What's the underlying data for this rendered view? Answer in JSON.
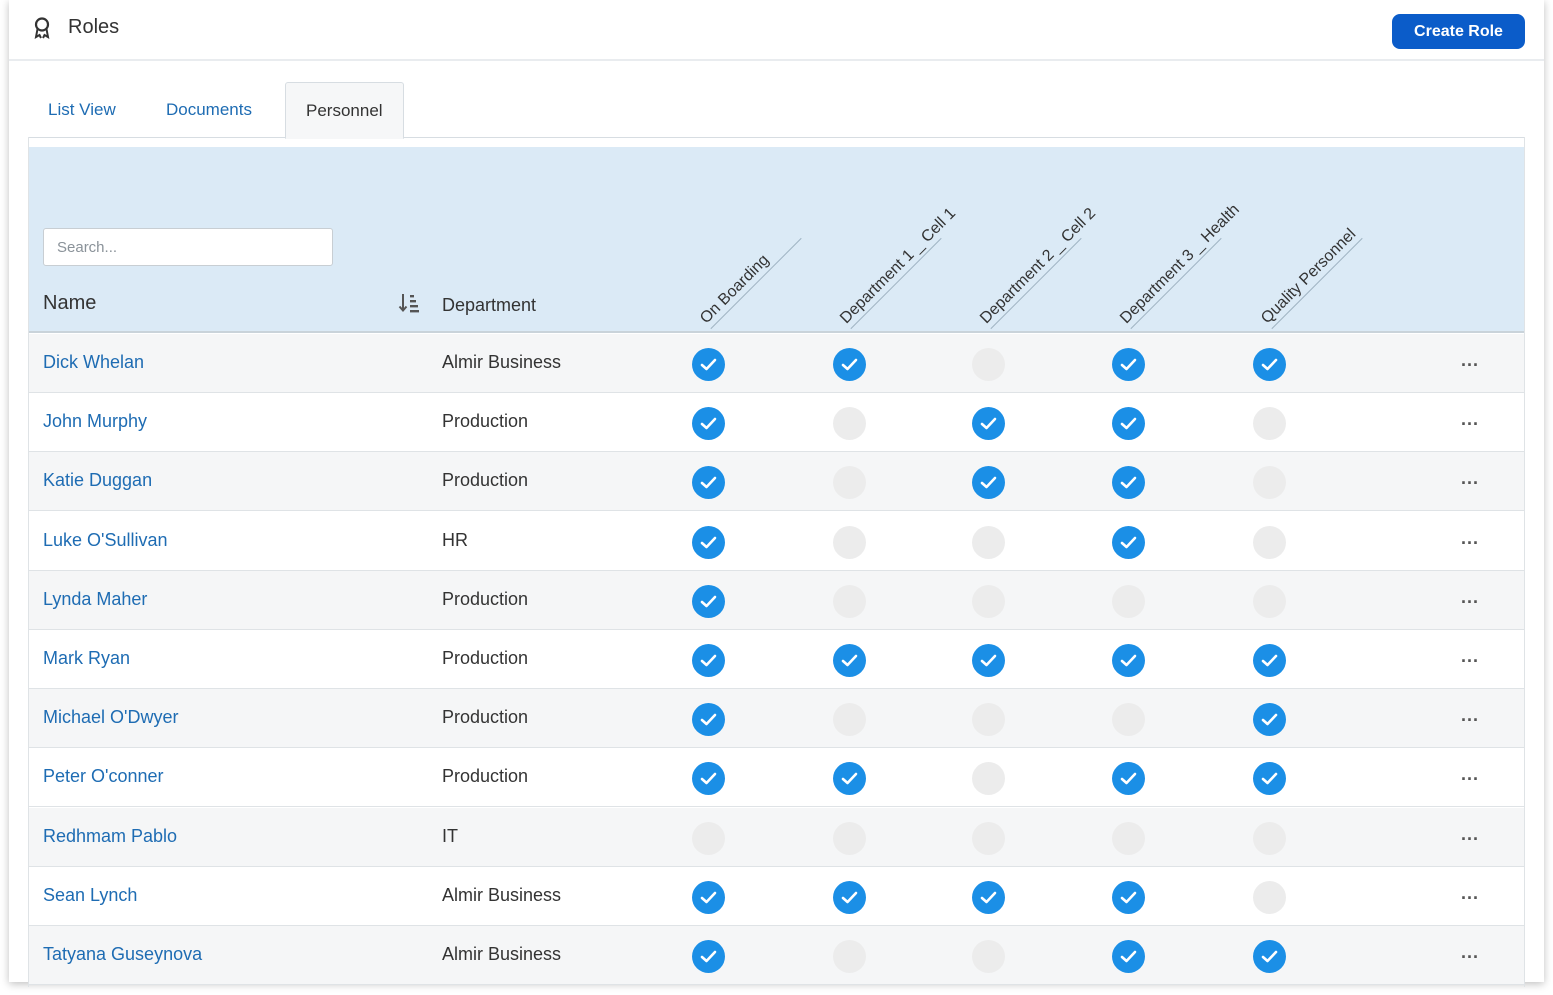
{
  "header": {
    "title": "Roles",
    "icon": "award-ribbon-icon",
    "create_button": "Create Role",
    "accent_color": "#0b5cc9"
  },
  "tabs": [
    {
      "label": "List View",
      "active": false
    },
    {
      "label": "Documents",
      "active": false
    },
    {
      "label": "Personnel",
      "active": true
    }
  ],
  "table": {
    "search_placeholder": "Search...",
    "name_header": "Name",
    "department_header": "Department",
    "role_columns": [
      "On Boarding",
      "Department 1 _ Cell 1",
      "Department 2 _ Cell 2",
      "Department 3 _ Health",
      "Quality Personnel"
    ],
    "check_color": "#1b8fe6",
    "rows": [
      {
        "name": "Dick Whelan",
        "department": "Almir Business",
        "roles": [
          true,
          true,
          false,
          true,
          true
        ],
        "more": "..."
      },
      {
        "name": "John Murphy",
        "department": "Production",
        "roles": [
          true,
          false,
          true,
          true,
          false
        ],
        "more": "..."
      },
      {
        "name": "Katie Duggan",
        "department": "Production",
        "roles": [
          true,
          false,
          true,
          true,
          false
        ],
        "more": "..."
      },
      {
        "name": "Luke O'Sullivan",
        "department": "HR",
        "roles": [
          true,
          false,
          false,
          true,
          false
        ],
        "more": "..."
      },
      {
        "name": "Lynda Maher",
        "department": "Production",
        "roles": [
          true,
          false,
          false,
          false,
          false
        ],
        "more": "..."
      },
      {
        "name": "Mark Ryan",
        "department": "Production",
        "roles": [
          true,
          true,
          true,
          true,
          true
        ],
        "more": "..."
      },
      {
        "name": "Michael O'Dwyer",
        "department": "Production",
        "roles": [
          true,
          false,
          false,
          false,
          true
        ],
        "more": "..."
      },
      {
        "name": "Peter O'conner",
        "department": "Production",
        "roles": [
          true,
          true,
          false,
          true,
          true
        ],
        "more": "..."
      },
      {
        "name": "Redhmam Pablo",
        "department": "IT",
        "roles": [
          false,
          false,
          false,
          false,
          false
        ],
        "more": "..."
      },
      {
        "name": "Sean Lynch",
        "department": "Almir Business",
        "roles": [
          true,
          true,
          true,
          true,
          false
        ],
        "more": "..."
      },
      {
        "name": "Tatyana Guseynova",
        "department": "Almir Business",
        "roles": [
          true,
          false,
          false,
          true,
          true
        ],
        "more": "..."
      }
    ]
  }
}
